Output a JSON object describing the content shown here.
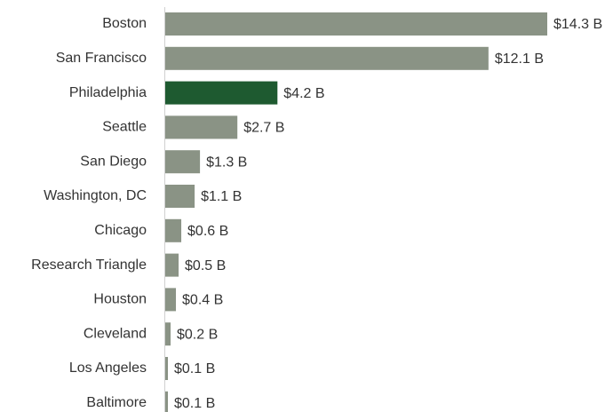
{
  "chart_data": {
    "type": "bar",
    "orientation": "horizontal",
    "categories": [
      "Boston",
      "San Francisco",
      "Philadelphia",
      "Seattle",
      "San Diego",
      "Washington, DC",
      "Chicago",
      "Research Triangle",
      "Houston",
      "Cleveland",
      "Los Angeles",
      "Baltimore"
    ],
    "values": [
      14.3,
      12.1,
      4.2,
      2.7,
      1.3,
      1.1,
      0.6,
      0.5,
      0.4,
      0.2,
      0.1,
      0.1
    ],
    "value_labels": [
      "$14.3 B",
      "$12.1 B",
      "$4.2 B",
      "$2.7 B",
      "$1.3 B",
      "$1.1 B",
      "$0.6 B",
      "$0.5 B",
      "$0.4 B",
      "$0.2 B",
      "$0.1 B",
      "$0.1 B"
    ],
    "colors": [
      "#8a9385",
      "#8a9385",
      "#1e5a30",
      "#8a9385",
      "#8a9385",
      "#8a9385",
      "#8a9385",
      "#8a9385",
      "#8a9385",
      "#8a9385",
      "#8a9385",
      "#8a9385"
    ]
  }
}
